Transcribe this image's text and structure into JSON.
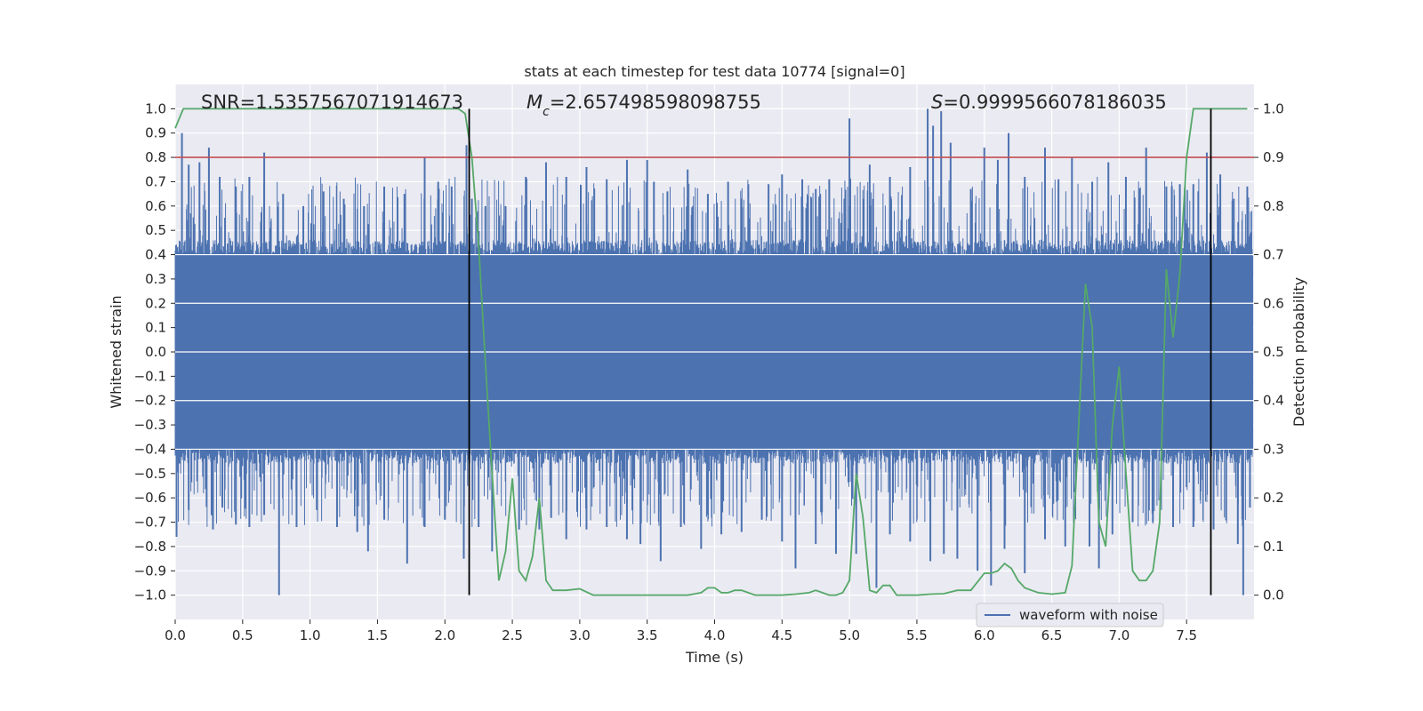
{
  "chart_data": {
    "type": "line",
    "title": "stats at each timestep for test data 10774 [signal=0]",
    "xlabel": "Time (s)",
    "ylabel": "Whitened strain",
    "ylabel_right": "Detection probability",
    "xlim": [
      0.0,
      8.0
    ],
    "ylim": [
      -1.1,
      1.1
    ],
    "ylim_right": [
      -0.05,
      1.05
    ],
    "xticks": [
      "0.0",
      "0.5",
      "1.0",
      "1.5",
      "2.0",
      "2.5",
      "3.0",
      "3.5",
      "4.0",
      "4.5",
      "5.0",
      "5.5",
      "6.0",
      "6.5",
      "7.0",
      "7.5"
    ],
    "yticks": [
      "1.0",
      "0.9",
      "0.8",
      "0.7",
      "0.6",
      "0.5",
      "0.4",
      "0.3",
      "0.2",
      "0.1",
      "0.0",
      "-0.1",
      "-0.2",
      "-0.3",
      "-0.4",
      "-0.5",
      "-0.6",
      "-0.7",
      "-0.8",
      "-0.9",
      "-1.0"
    ],
    "yticks_right": [
      "1.0",
      "0.9",
      "0.8",
      "0.7",
      "0.6",
      "0.5",
      "0.4",
      "0.3",
      "0.2",
      "0.1",
      "0.0"
    ],
    "grid": true,
    "annotations": {
      "snr": "SNR=1.5357567071914673",
      "mc_symbol": "M",
      "mc_sub": "c",
      "mc_value": "=2.657498598098755",
      "s_symbol": "S",
      "s_value": "=0.9999566078186035"
    },
    "legend": {
      "label": "waveform with noise",
      "position": "lower-right"
    },
    "threshold": {
      "value": 0.9,
      "axis": "right",
      "color": "#c44e52"
    },
    "vlines": [
      2.18,
      7.68
    ],
    "waveform": {
      "name": "waveform with noise",
      "color": "#4c72b0",
      "core_amplitude": 0.4,
      "peaks_pos": [
        [
          0.05,
          0.9
        ],
        [
          0.1,
          0.77
        ],
        [
          0.18,
          0.78
        ],
        [
          0.25,
          0.84
        ],
        [
          0.33,
          0.72
        ],
        [
          0.45,
          0.68
        ],
        [
          0.55,
          0.72
        ],
        [
          0.66,
          0.82
        ],
        [
          0.8,
          0.65
        ],
        [
          0.95,
          0.6
        ],
        [
          1.1,
          0.66
        ],
        [
          1.25,
          0.63
        ],
        [
          1.4,
          0.6
        ],
        [
          1.55,
          0.68
        ],
        [
          1.7,
          0.65
        ],
        [
          1.85,
          0.8
        ],
        [
          1.95,
          0.7
        ],
        [
          2.05,
          0.68
        ],
        [
          2.16,
          0.85
        ],
        [
          2.2,
          0.63
        ],
        [
          2.3,
          0.6
        ],
        [
          2.45,
          0.6
        ],
        [
          2.6,
          0.72
        ],
        [
          2.75,
          0.78
        ],
        [
          2.9,
          0.72
        ],
        [
          3.05,
          0.76
        ],
        [
          3.2,
          0.71
        ],
        [
          3.35,
          0.79
        ],
        [
          3.5,
          0.79
        ],
        [
          3.55,
          0.7
        ],
        [
          3.65,
          0.66
        ],
        [
          3.8,
          0.75
        ],
        [
          3.95,
          0.65
        ],
        [
          4.1,
          0.7
        ],
        [
          4.25,
          0.69
        ],
        [
          4.4,
          0.69
        ],
        [
          4.5,
          0.73
        ],
        [
          4.65,
          0.71
        ],
        [
          4.75,
          0.67
        ],
        [
          4.85,
          0.71
        ],
        [
          5.0,
          0.96
        ],
        [
          5.15,
          0.77
        ],
        [
          5.3,
          0.72
        ],
        [
          5.45,
          0.76
        ],
        [
          5.58,
          1.0
        ],
        [
          5.62,
          0.93
        ],
        [
          5.68,
          0.99
        ],
        [
          5.75,
          0.86
        ],
        [
          5.9,
          0.67
        ],
        [
          6.0,
          0.84
        ],
        [
          6.1,
          0.79
        ],
        [
          6.18,
          0.9
        ],
        [
          6.3,
          0.72
        ],
        [
          6.45,
          0.84
        ],
        [
          6.55,
          0.71
        ],
        [
          6.65,
          0.8
        ],
        [
          6.8,
          0.7
        ],
        [
          6.92,
          0.78
        ],
        [
          7.05,
          0.72
        ],
        [
          7.2,
          0.84
        ],
        [
          7.35,
          0.68
        ],
        [
          7.45,
          0.69
        ],
        [
          7.55,
          0.69
        ],
        [
          7.65,
          0.82
        ],
        [
          7.75,
          0.73
        ],
        [
          7.85,
          0.63
        ],
        [
          7.95,
          0.68
        ]
      ],
      "peaks_neg": [
        [
          0.01,
          -0.76
        ],
        [
          0.1,
          -0.65
        ],
        [
          0.28,
          -0.73
        ],
        [
          0.35,
          -0.64
        ],
        [
          0.45,
          -0.71
        ],
        [
          0.55,
          -0.72
        ],
        [
          0.66,
          -0.67
        ],
        [
          0.77,
          -1.0
        ],
        [
          0.9,
          -0.72
        ],
        [
          1.05,
          -0.65
        ],
        [
          1.2,
          -0.72
        ],
        [
          1.35,
          -0.74
        ],
        [
          1.43,
          -0.82
        ],
        [
          1.55,
          -0.69
        ],
        [
          1.72,
          -0.87
        ],
        [
          1.85,
          -0.72
        ],
        [
          2.0,
          -0.69
        ],
        [
          2.14,
          -0.85
        ],
        [
          2.25,
          -0.72
        ],
        [
          2.35,
          -0.82
        ],
        [
          2.55,
          -0.73
        ],
        [
          2.7,
          -0.73
        ],
        [
          2.9,
          -0.77
        ],
        [
          3.05,
          -0.73
        ],
        [
          3.2,
          -0.72
        ],
        [
          3.35,
          -0.77
        ],
        [
          3.45,
          -0.79
        ],
        [
          3.6,
          -0.86
        ],
        [
          3.75,
          -0.72
        ],
        [
          3.9,
          -0.81
        ],
        [
          4.05,
          -0.75
        ],
        [
          4.2,
          -0.74
        ],
        [
          4.35,
          -0.69
        ],
        [
          4.5,
          -0.78
        ],
        [
          4.6,
          -0.89
        ],
        [
          4.75,
          -0.79
        ],
        [
          4.9,
          -0.83
        ],
        [
          5.05,
          -0.83
        ],
        [
          5.2,
          -0.97
        ],
        [
          5.3,
          -0.75
        ],
        [
          5.45,
          -0.78
        ],
        [
          5.6,
          -0.86
        ],
        [
          5.7,
          -0.83
        ],
        [
          5.8,
          -0.85
        ],
        [
          5.95,
          -0.9
        ],
        [
          6.05,
          -0.96
        ],
        [
          6.15,
          -0.81
        ],
        [
          6.3,
          -0.91
        ],
        [
          6.45,
          -0.77
        ],
        [
          6.6,
          -0.8
        ],
        [
          6.78,
          -0.8
        ],
        [
          6.85,
          -0.89
        ],
        [
          6.95,
          -0.75
        ],
        [
          7.1,
          -0.7
        ],
        [
          7.25,
          -0.7
        ],
        [
          7.4,
          -0.72
        ],
        [
          7.55,
          -0.72
        ],
        [
          7.7,
          -0.73
        ],
        [
          7.88,
          -0.79
        ],
        [
          7.92,
          -1.0
        ],
        [
          7.97,
          -0.64
        ]
      ]
    },
    "probability": {
      "name": "detection probability",
      "color": "#55a868",
      "axis": "right",
      "x": [
        0.0,
        0.06,
        0.1,
        0.5,
        1.0,
        1.5,
        2.0,
        2.05,
        2.1,
        2.15,
        2.2,
        2.25,
        2.3,
        2.35,
        2.4,
        2.45,
        2.5,
        2.55,
        2.6,
        2.65,
        2.7,
        2.75,
        2.8,
        2.85,
        2.9,
        3.0,
        3.1,
        3.3,
        3.5,
        3.7,
        3.8,
        3.9,
        3.95,
        4.0,
        4.05,
        4.1,
        4.15,
        4.2,
        4.3,
        4.5,
        4.6,
        4.7,
        4.75,
        4.8,
        4.85,
        4.9,
        4.95,
        5.0,
        5.05,
        5.1,
        5.15,
        5.2,
        5.25,
        5.3,
        5.35,
        5.4,
        5.5,
        5.6,
        5.7,
        5.8,
        5.9,
        6.0,
        6.05,
        6.1,
        6.15,
        6.2,
        6.25,
        6.3,
        6.35,
        6.4,
        6.5,
        6.6,
        6.65,
        6.7,
        6.75,
        6.8,
        6.85,
        6.9,
        6.95,
        7.0,
        7.05,
        7.1,
        7.15,
        7.2,
        7.25,
        7.3,
        7.35,
        7.4,
        7.45,
        7.5,
        7.55,
        7.6,
        7.65,
        7.7,
        7.75,
        7.8,
        7.85,
        7.9,
        7.95
      ],
      "y": [
        0.96,
        1.0,
        1.0,
        1.0,
        1.0,
        1.0,
        1.0,
        1.0,
        1.0,
        0.99,
        0.9,
        0.72,
        0.48,
        0.25,
        0.03,
        0.09,
        0.24,
        0.05,
        0.03,
        0.08,
        0.2,
        0.03,
        0.01,
        0.01,
        0.01,
        0.013,
        0.0,
        0.0,
        0.0,
        0.0,
        0.0,
        0.005,
        0.015,
        0.015,
        0.005,
        0.005,
        0.01,
        0.01,
        0.0,
        0.0,
        0.002,
        0.005,
        0.01,
        0.005,
        0.0,
        0.0,
        0.005,
        0.03,
        0.25,
        0.16,
        0.01,
        0.005,
        0.02,
        0.02,
        0.0,
        0.0,
        0.0,
        0.002,
        0.003,
        0.01,
        0.01,
        0.045,
        0.045,
        0.05,
        0.065,
        0.055,
        0.03,
        0.015,
        0.01,
        0.005,
        0.002,
        0.005,
        0.06,
        0.35,
        0.64,
        0.55,
        0.15,
        0.1,
        0.35,
        0.47,
        0.25,
        0.05,
        0.03,
        0.03,
        0.05,
        0.15,
        0.67,
        0.53,
        0.66,
        0.9,
        1.0,
        1.0,
        1.0,
        1.0,
        1.0,
        1.0,
        1.0,
        1.0,
        1.0
      ]
    }
  }
}
